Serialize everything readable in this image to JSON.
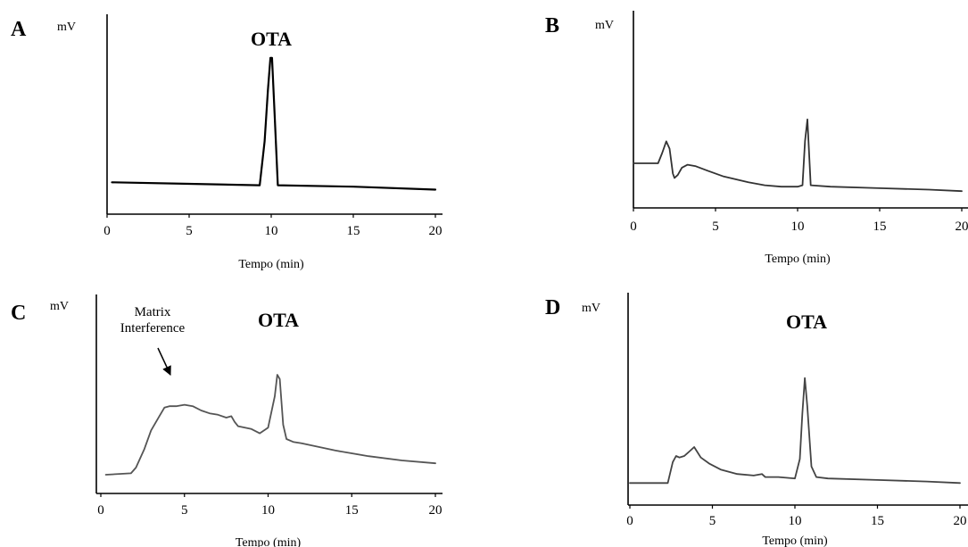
{
  "chart_data": [
    {
      "panel": "A",
      "type": "line",
      "ylabel": "mV",
      "xlabel": "Tempo (min)",
      "xticks": [
        "0",
        "5",
        "10",
        "15",
        "20"
      ],
      "xlim": [
        0,
        20
      ],
      "ylim": [
        0,
        100
      ],
      "annotations": [
        {
          "text": "OTA",
          "x": 10
        }
      ],
      "series": [
        {
          "color": "#000000",
          "x": [
            0.3,
            5,
            9.3,
            9.6,
            9.8,
            9.95,
            10.05,
            10.2,
            10.4,
            15,
            20
          ],
          "y": [
            12,
            11,
            10,
            40,
            75,
            97,
            97,
            60,
            10,
            9,
            7
          ]
        }
      ]
    },
    {
      "panel": "B",
      "type": "line",
      "ylabel": "mV",
      "xlabel": "Tempo (min)",
      "xticks": [
        "0",
        "5",
        "10",
        "15",
        "20"
      ],
      "xlim": [
        0,
        20
      ],
      "ylim": [
        0,
        100
      ],
      "series": [
        {
          "color": "#333333",
          "x": [
            0,
            1.5,
            1.75,
            2.0,
            2.2,
            2.4,
            2.5,
            2.7,
            2.95,
            3.3,
            3.8,
            4.5,
            5.5,
            7,
            8,
            9,
            10,
            10.3,
            10.45,
            10.6,
            10.8,
            12,
            15,
            18,
            20
          ],
          "y": [
            25,
            25,
            32,
            40,
            35,
            18,
            15,
            17,
            22,
            24,
            23,
            20,
            16,
            12,
            10,
            9,
            9,
            10,
            40,
            55,
            10,
            9,
            8,
            7,
            6
          ]
        }
      ]
    },
    {
      "panel": "C",
      "type": "line",
      "ylabel": "mV",
      "xlabel": "Tempo (min)",
      "xticks": [
        "0",
        "5",
        "10",
        "15",
        "20"
      ],
      "xlim": [
        0,
        20
      ],
      "ylim": [
        0,
        100
      ],
      "annotations": [
        {
          "text": "OTA",
          "x": 10.6
        },
        {
          "text": "Matrix Interference",
          "x": 4,
          "arrow": true
        }
      ],
      "series": [
        {
          "color": "#555555",
          "x": [
            0.3,
            1.8,
            2.1,
            2.6,
            3.0,
            3.5,
            3.8,
            4.1,
            4.5,
            5.0,
            5.5,
            6,
            6.5,
            7,
            7.5,
            7.8,
            8.0,
            8.2,
            9,
            9.5,
            10.0,
            10.4,
            10.55,
            10.7,
            10.9,
            11.1,
            11.5,
            12,
            14,
            16,
            18,
            20
          ],
          "y": [
            5,
            6,
            10,
            23,
            36,
            46,
            52,
            53,
            53,
            54,
            53,
            50,
            48,
            47,
            45,
            46,
            42,
            39,
            37,
            34,
            38,
            60,
            75,
            72,
            40,
            30,
            28,
            27,
            22,
            18,
            15,
            13
          ]
        }
      ]
    },
    {
      "panel": "D",
      "type": "line",
      "ylabel": "mV",
      "xlabel": "Tempo (min)",
      "xticks": [
        "0",
        "5",
        "10",
        "15",
        "20"
      ],
      "xlim": [
        0,
        20
      ],
      "ylim": [
        0,
        100
      ],
      "annotations": [
        {
          "text": "OTA",
          "x": 10.6
        }
      ],
      "series": [
        {
          "color": "#444444",
          "x": [
            0,
            2.3,
            2.6,
            2.8,
            3.0,
            3.3,
            3.6,
            3.9,
            4.3,
            4.8,
            5.5,
            6.5,
            7.5,
            8.0,
            8.2,
            9,
            10,
            10.3,
            10.45,
            10.6,
            10.75,
            11.0,
            11.3,
            12,
            15,
            18,
            20
          ],
          "y": [
            4,
            4,
            18,
            22,
            21,
            22,
            25,
            28,
            21,
            17,
            13,
            10,
            9,
            10,
            8,
            8,
            7,
            20,
            50,
            74,
            55,
            15,
            8,
            7,
            6,
            5,
            4
          ]
        }
      ]
    }
  ]
}
